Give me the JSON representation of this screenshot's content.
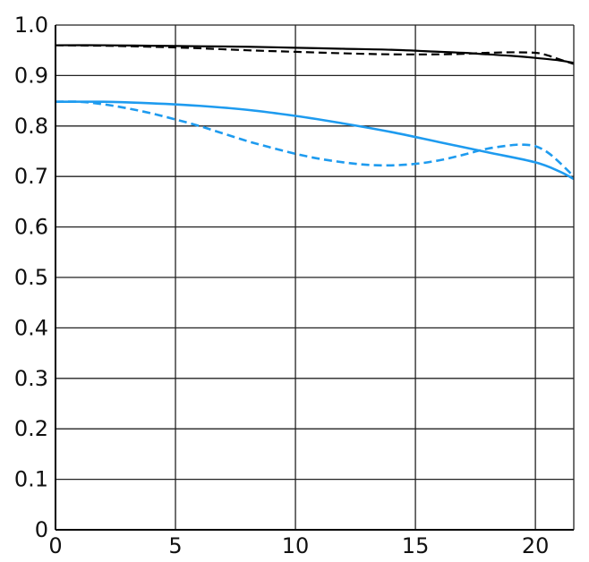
{
  "chart_data": {
    "type": "line",
    "title": "",
    "xlabel": "",
    "ylabel": "",
    "xlim": [
      0,
      21.6
    ],
    "ylim": [
      0,
      1.0
    ],
    "x_ticks": [
      0,
      5,
      10,
      15,
      20
    ],
    "x_tick_labels": [
      "0",
      "5",
      "10",
      "15",
      "20"
    ],
    "y_ticks": [
      0,
      0.1,
      0.2,
      0.3,
      0.4,
      0.5,
      0.6,
      0.7,
      0.8,
      0.9,
      1.0
    ],
    "y_tick_labels": [
      "0",
      "0.1",
      "0.2",
      "0.3",
      "0.4",
      "0.5",
      "0.6",
      "0.7",
      "0.8",
      "0.9",
      "1.0"
    ],
    "grid": true,
    "series": [
      {
        "color": "#000000",
        "dashed": false,
        "x": [
          0,
          2,
          4,
          6,
          8,
          10,
          12,
          14,
          16,
          17,
          18,
          19,
          20,
          21,
          21.6
        ],
        "y": [
          0.96,
          0.96,
          0.959,
          0.958,
          0.957,
          0.955,
          0.953,
          0.951,
          0.947,
          0.945,
          0.942,
          0.939,
          0.935,
          0.93,
          0.925
        ]
      },
      {
        "color": "#000000",
        "dashed": true,
        "x": [
          0,
          2,
          4,
          6,
          8,
          10,
          12,
          14,
          16,
          17,
          18,
          19,
          20,
          20.5,
          21,
          21.6
        ],
        "y": [
          0.96,
          0.959,
          0.957,
          0.954,
          0.95,
          0.947,
          0.944,
          0.942,
          0.942,
          0.943,
          0.945,
          0.946,
          0.945,
          0.94,
          0.932,
          0.923
        ]
      },
      {
        "color": "#1E9BEF",
        "dashed": false,
        "x": [
          0,
          2,
          4,
          6,
          8,
          10,
          12,
          14,
          16,
          18,
          20,
          21,
          21.6
        ],
        "y": [
          0.848,
          0.848,
          0.845,
          0.84,
          0.832,
          0.82,
          0.805,
          0.788,
          0.768,
          0.748,
          0.728,
          0.71,
          0.695
        ]
      },
      {
        "color": "#1E9BEF",
        "dashed": true,
        "x": [
          0,
          1,
          2,
          3,
          4,
          5,
          6,
          7,
          8,
          9,
          10,
          11,
          12,
          13,
          14,
          15,
          16,
          17,
          18,
          19,
          19.5,
          20,
          20.5,
          21,
          21.6
        ],
        "y": [
          0.848,
          0.848,
          0.843,
          0.835,
          0.825,
          0.813,
          0.8,
          0.785,
          0.77,
          0.757,
          0.745,
          0.735,
          0.728,
          0.723,
          0.722,
          0.725,
          0.732,
          0.743,
          0.755,
          0.762,
          0.763,
          0.76,
          0.748,
          0.728,
          0.7
        ]
      }
    ]
  }
}
